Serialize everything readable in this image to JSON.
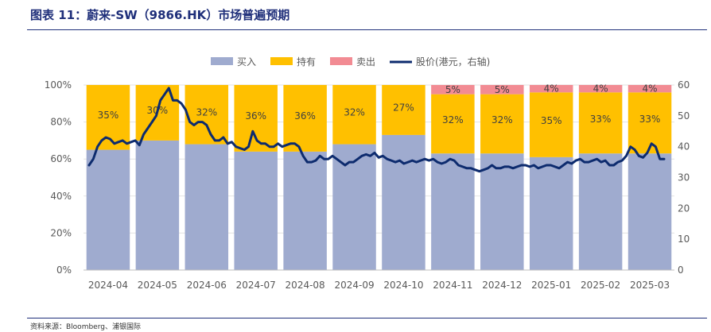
{
  "figure": {
    "title": "图表 11：蔚来-SW（9866.HK）市场普遍预期",
    "source": "资料来源：Bloomberg、浦银国际"
  },
  "chart_data": {
    "type": "bar",
    "stacked": true,
    "categories": [
      "2024-04",
      "2024-05",
      "2024-06",
      "2024-07",
      "2024-08",
      "2024-09",
      "2024-10",
      "2024-11",
      "2024-12",
      "2025-01",
      "2025-02",
      "2025-03"
    ],
    "series": [
      {
        "name": "买入",
        "color": "#9fabcf",
        "values": [
          65,
          70,
          68,
          64,
          64,
          68,
          73,
          63,
          63,
          61,
          63,
          63
        ]
      },
      {
        "name": "持有",
        "color": "#ffc000",
        "values": [
          35,
          30,
          32,
          36,
          36,
          32,
          27,
          32,
          32,
          35,
          33,
          33
        ]
      },
      {
        "name": "卖出",
        "color": "#f28b93",
        "values": [
          0,
          0,
          0,
          0,
          0,
          0,
          0,
          5,
          5,
          4,
          4,
          4
        ]
      }
    ],
    "hold_labels": [
      "35%",
      "30%",
      "32%",
      "36%",
      "36%",
      "32%",
      "27%",
      "32%",
      "32%",
      "35%",
      "33%",
      "33%"
    ],
    "sell_labels": [
      "",
      "",
      "",
      "",
      "",
      "",
      "",
      "5%",
      "5%",
      "4%",
      "4%",
      "4%"
    ],
    "line": {
      "name": "股价(港元，右轴)",
      "color": "#0d2b6e",
      "values": [
        34,
        36,
        40,
        42,
        43,
        42.5,
        41,
        41.5,
        42,
        41,
        41.5,
        42,
        40.5,
        44,
        46,
        48,
        50,
        55,
        57,
        59,
        55,
        55,
        54,
        52,
        48,
        47,
        48,
        48,
        47,
        44,
        42,
        42,
        43,
        41,
        41.5,
        40,
        39.5,
        39,
        40,
        45,
        42,
        41,
        41,
        40,
        40,
        41,
        40,
        40.5,
        41,
        41,
        40,
        37,
        35,
        35,
        35.5,
        37,
        36,
        36,
        37,
        36,
        35,
        34,
        35,
        35,
        36,
        37,
        37.5,
        37,
        38,
        36.5,
        37,
        36,
        35.5,
        35,
        35.5,
        34.5,
        35,
        35.5,
        35,
        35.5,
        36,
        35.5,
        36,
        35,
        34.5,
        35,
        36,
        35.5,
        34,
        33.5,
        33,
        33,
        32.5,
        32,
        32.5,
        33,
        34,
        33,
        33,
        33.5,
        33.5,
        33,
        33.5,
        34,
        34,
        33.5,
        34,
        33,
        33.5,
        34,
        34,
        33.5,
        33,
        34,
        35,
        34.5,
        35.5,
        36,
        35,
        35,
        35.5,
        36,
        35,
        35.5,
        34,
        34,
        35,
        35.5,
        37,
        40,
        39,
        37,
        36.5,
        38,
        41,
        40,
        36,
        36
      ]
    },
    "y_left": {
      "min": 0,
      "max": 100,
      "ticks": [
        "0%",
        "20%",
        "40%",
        "60%",
        "80%",
        "100%"
      ]
    },
    "y_right": {
      "min": 0,
      "max": 60,
      "ticks": [
        "0",
        "10",
        "20",
        "30",
        "40",
        "50",
        "60"
      ]
    },
    "legend": {
      "position": "top",
      "items": [
        "买入",
        "持有",
        "卖出",
        "股价(港元，右轴)"
      ]
    }
  }
}
